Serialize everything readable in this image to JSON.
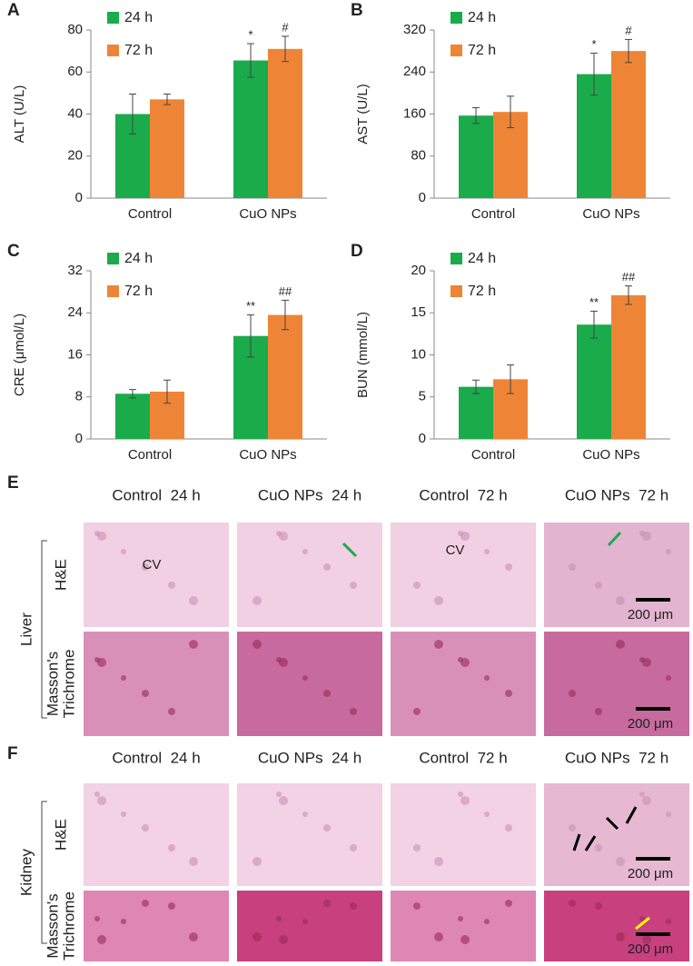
{
  "chart_data": [
    {
      "type": "bar",
      "label": "A",
      "y_label": "ALT (U/L)",
      "categories": [
        "Control",
        "CuO NPs"
      ],
      "ylim": [
        0,
        80
      ],
      "yticks": [
        0,
        20,
        40,
        60,
        80
      ],
      "series": [
        {
          "name": "24 h",
          "color": "#1aab4b",
          "values": [
            40,
            65.5
          ],
          "errors": [
            9.5,
            8
          ],
          "significance": [
            null,
            "*"
          ]
        },
        {
          "name": "72 h",
          "color": "#ee8536",
          "values": [
            47,
            71
          ],
          "errors": [
            2.5,
            6
          ],
          "significance": [
            null,
            "#"
          ]
        }
      ]
    },
    {
      "type": "bar",
      "label": "B",
      "y_label": "AST (U/L)",
      "categories": [
        "Control",
        "CuO NPs"
      ],
      "ylim": [
        0,
        320
      ],
      "yticks": [
        0,
        80,
        160,
        240,
        320
      ],
      "series": [
        {
          "name": "24 h",
          "color": "#1aab4b",
          "values": [
            157,
            236
          ],
          "errors": [
            15,
            40
          ],
          "significance": [
            null,
            "*"
          ]
        },
        {
          "name": "72 h",
          "color": "#ee8536",
          "values": [
            164,
            280
          ],
          "errors": [
            30,
            22
          ],
          "significance": [
            null,
            "#"
          ]
        }
      ]
    },
    {
      "type": "bar",
      "label": "C",
      "y_label": "CRE (μmol/L)",
      "categories": [
        "Control",
        "CuO NPs"
      ],
      "ylim": [
        0,
        32
      ],
      "yticks": [
        0,
        8,
        16,
        24,
        32
      ],
      "series": [
        {
          "name": "24 h",
          "color": "#1aab4b",
          "values": [
            8.6,
            19.6
          ],
          "errors": [
            0.8,
            4
          ],
          "significance": [
            null,
            "**"
          ]
        },
        {
          "name": "72 h",
          "color": "#ee8536",
          "values": [
            9,
            23.6
          ],
          "errors": [
            2.2,
            2.8
          ],
          "significance": [
            null,
            "##"
          ]
        }
      ]
    },
    {
      "type": "bar",
      "label": "D",
      "y_label": "BUN (mmol/L)",
      "categories": [
        "Control",
        "CuO NPs"
      ],
      "ylim": [
        0,
        20
      ],
      "yticks": [
        0,
        5,
        10,
        15,
        20
      ],
      "series": [
        {
          "name": "24 h",
          "color": "#1aab4b",
          "values": [
            6.2,
            13.6
          ],
          "errors": [
            0.8,
            1.6
          ],
          "significance": [
            null,
            "**"
          ]
        },
        {
          "name": "72 h",
          "color": "#ee8536",
          "values": [
            7.1,
            17.1
          ],
          "errors": [
            1.7,
            1.1
          ],
          "significance": [
            null,
            "##"
          ]
        }
      ]
    }
  ],
  "histology": [
    {
      "label": "E",
      "organ": "Liver",
      "columns": [
        "Control  24 h",
        "CuO NPs  24 h",
        "Control  72 h",
        "CuO NPs  72 h"
      ],
      "rows": [
        [
          "H&E"
        ],
        [
          "Masson's",
          "Trichrome"
        ]
      ],
      "vessel_label": "CV",
      "scale_bar": "200 μm"
    },
    {
      "label": "F",
      "organ": "Kidney",
      "columns": [
        "Control  24 h",
        "CuO NPs  24 h",
        "Control  72 h",
        "CuO NPs  72 h"
      ],
      "rows": [
        [
          "H&E"
        ],
        [
          "Masson's",
          "Trichrome"
        ]
      ],
      "scale_bar": "200 μm"
    }
  ]
}
